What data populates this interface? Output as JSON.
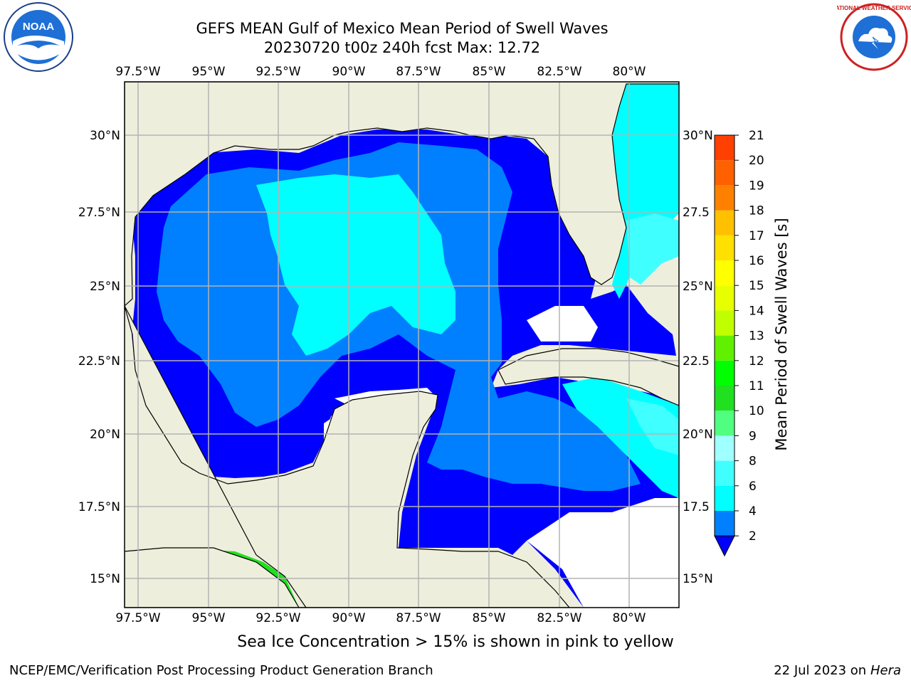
{
  "title": {
    "line1": "GEFS MEAN Gulf of Mexico Mean Period of Swell Waves",
    "line2": "20230720 t00z 240h fcst   Max: 12.72"
  },
  "logos": {
    "noaa_text": "NOAA",
    "nws_ring": "NATIONAL WEATHER SERVICE"
  },
  "map": {
    "lon_labels": [
      "97.5°W",
      "95°W",
      "92.5°W",
      "90°W",
      "87.5°W",
      "85°W",
      "82.5°W",
      "80°W"
    ],
    "lat_labels_left": [
      "30°N",
      "27.5°N",
      "25°N",
      "22.5°N",
      "20°N",
      "17.5°N",
      "15°N"
    ],
    "lat_labels_right": [
      "30°N",
      "27.5",
      "25°N",
      "22.5",
      "20°N",
      "17.5",
      "15°N"
    ],
    "colors": {
      "land": "#eeeedd",
      "ocean_missing": "#ffffff",
      "grid": "#b3b3b3"
    }
  },
  "colorbar": {
    "label": "Mean Period of Swell Waves [s]",
    "ticks": [
      "2",
      "4",
      "6",
      "8",
      "9",
      "10",
      "11",
      "12",
      "13",
      "14",
      "15",
      "16",
      "17",
      "18",
      "19",
      "20",
      "21"
    ],
    "colors": [
      "#0000ff",
      "#0080ff",
      "#00ffff",
      "#40ffff",
      "#a0ffff",
      "#50ff80",
      "#20e020",
      "#00ff00",
      "#60f000",
      "#c0ff00",
      "#e8ff00",
      "#ffff00",
      "#ffe000",
      "#ffc000",
      "#ff8000",
      "#ff6000",
      "#ff4000",
      "#ff0000"
    ]
  },
  "note": "Sea Ice Concentration > 15% is shown in pink to yellow",
  "footer": {
    "left": "NCEP/EMC/Verification Post Processing Product Generation Branch",
    "date": "22 Jul 2023 on ",
    "host": "Hera"
  }
}
